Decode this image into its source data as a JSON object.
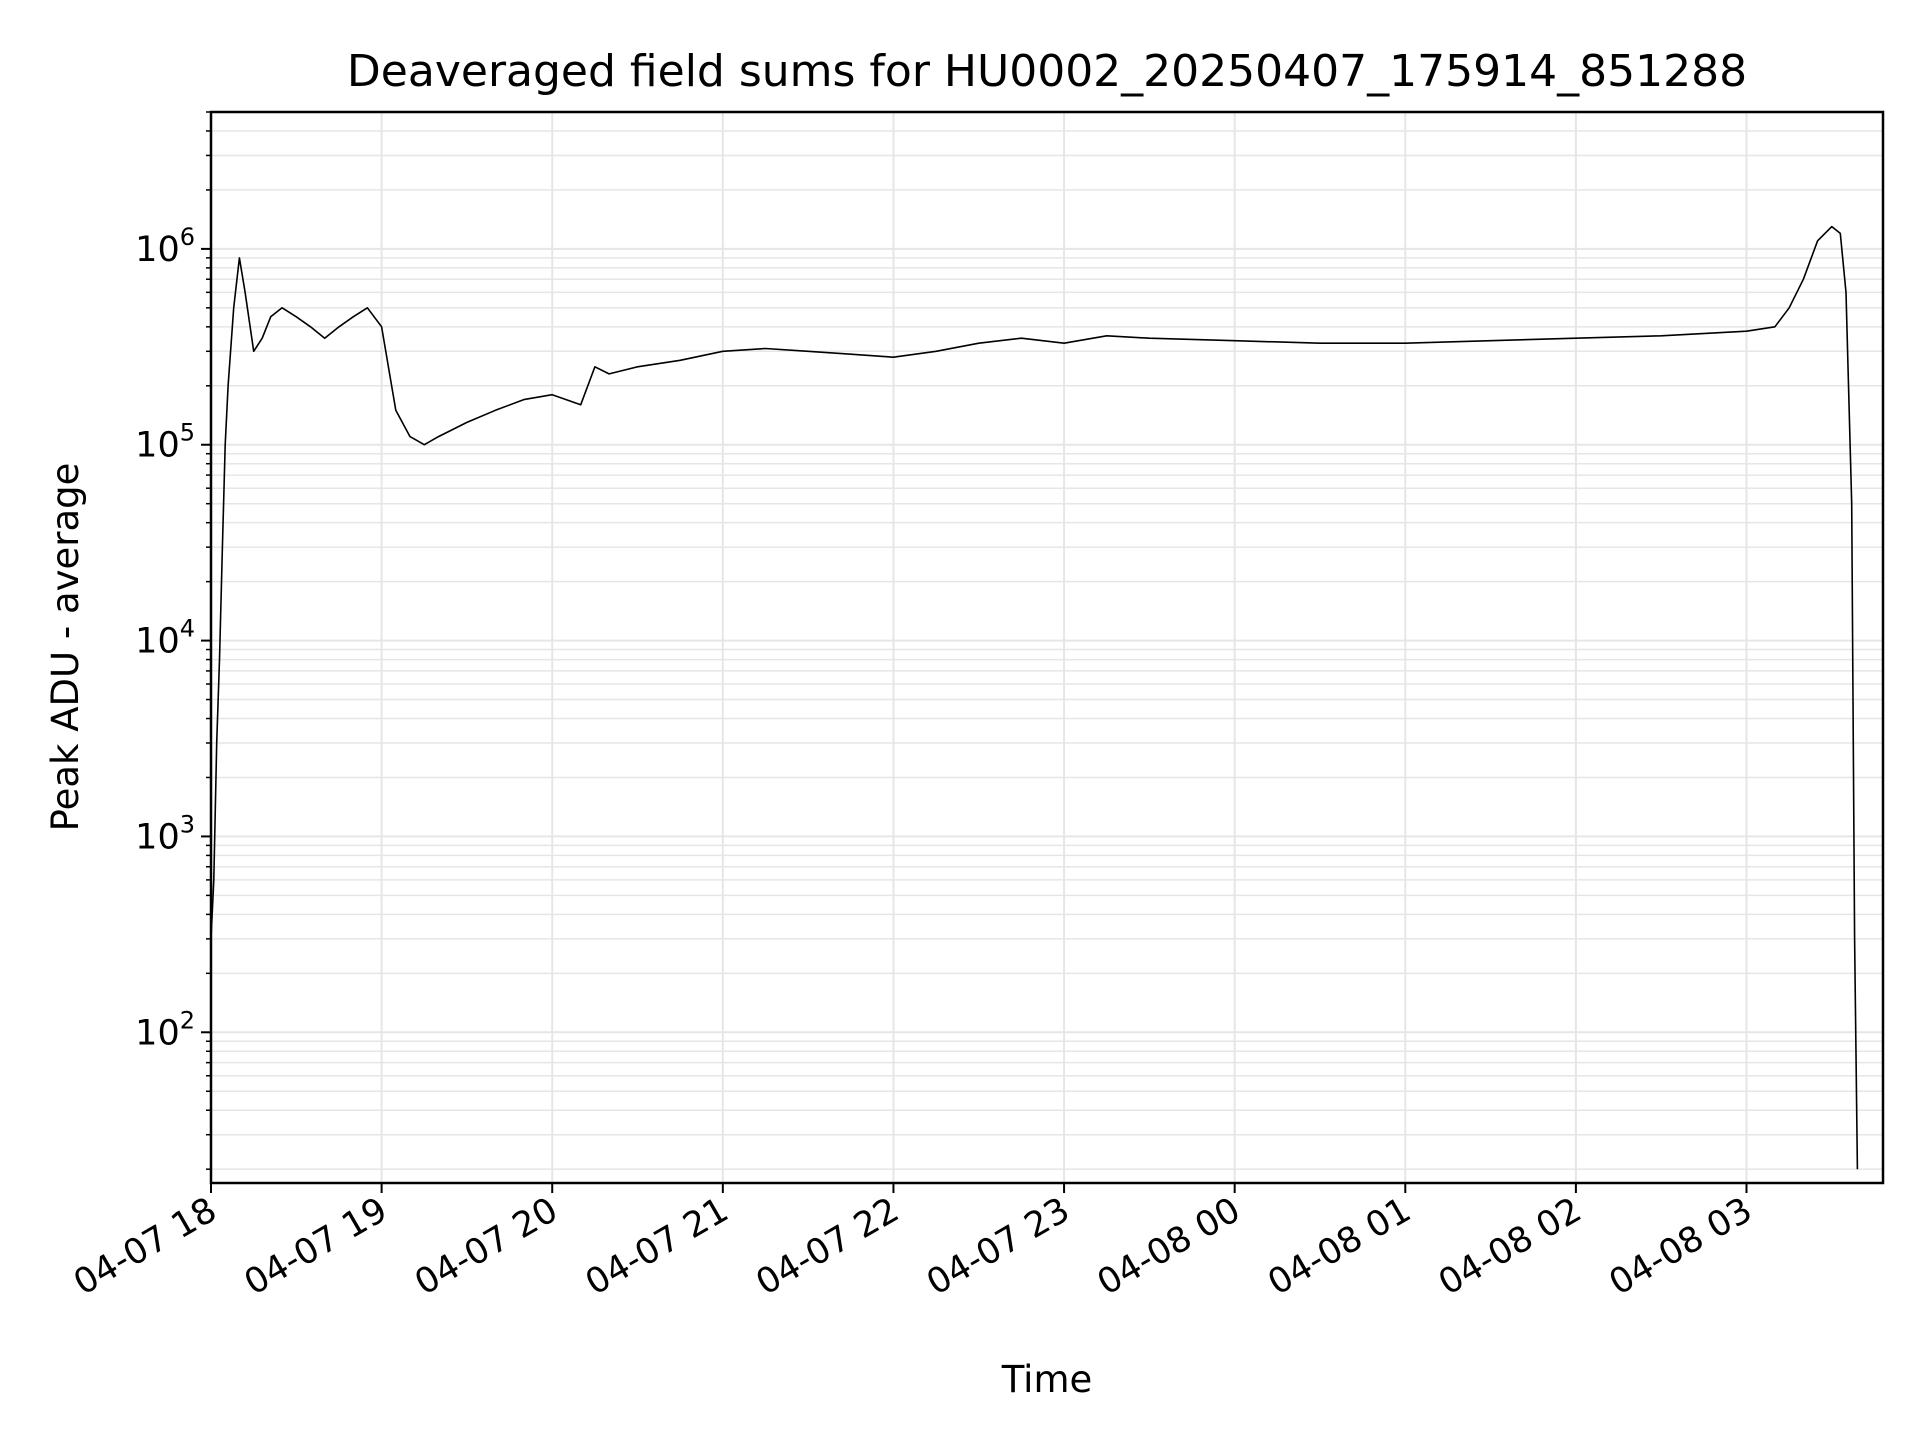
{
  "chart_data": {
    "type": "line",
    "title": "Deaveraged field sums for HU0002_20250407_175914_851288",
    "xlabel": "Time",
    "ylabel": "Peak ADU - average",
    "y_scale": "log",
    "ylim": [
      17,
      5000000
    ],
    "y_ticks": [
      {
        "value": 100,
        "base": "10",
        "exp": "2"
      },
      {
        "value": 1000,
        "base": "10",
        "exp": "3"
      },
      {
        "value": 10000,
        "base": "10",
        "exp": "4"
      },
      {
        "value": 100000,
        "base": "10",
        "exp": "5"
      },
      {
        "value": 1000000,
        "base": "10",
        "exp": "6"
      }
    ],
    "xlim": [
      "2025-04-07 18:00",
      "2025-04-08 03:48"
    ],
    "x_ticks": [
      {
        "value": "2025-04-07 18:00",
        "label": "04-07 18"
      },
      {
        "value": "2025-04-07 19:00",
        "label": "04-07 19"
      },
      {
        "value": "2025-04-07 20:00",
        "label": "04-07 20"
      },
      {
        "value": "2025-04-07 21:00",
        "label": "04-07 21"
      },
      {
        "value": "2025-04-07 22:00",
        "label": "04-07 22"
      },
      {
        "value": "2025-04-07 23:00",
        "label": "04-07 23"
      },
      {
        "value": "2025-04-08 00:00",
        "label": "04-08 00"
      },
      {
        "value": "2025-04-08 01:00",
        "label": "04-08 01"
      },
      {
        "value": "2025-04-08 02:00",
        "label": "04-08 02"
      },
      {
        "value": "2025-04-08 03:00",
        "label": "04-08 03"
      }
    ],
    "grid": true,
    "line_color": "#000000",
    "grid_color": "#e6e6e6",
    "series": [
      {
        "x": [
          "2025-04-07 18:00",
          "2025-04-07 18:01",
          "2025-04-07 18:02",
          "2025-04-07 18:03",
          "2025-04-07 18:04",
          "2025-04-07 18:05",
          "2025-04-07 18:06",
          "2025-04-07 18:08",
          "2025-04-07 18:10",
          "2025-04-07 18:12",
          "2025-04-07 18:15",
          "2025-04-07 18:18",
          "2025-04-07 18:21",
          "2025-04-07 18:25",
          "2025-04-07 18:30",
          "2025-04-07 18:35",
          "2025-04-07 18:40",
          "2025-04-07 18:45",
          "2025-04-07 18:50",
          "2025-04-07 18:55",
          "2025-04-07 19:00",
          "2025-04-07 19:05",
          "2025-04-07 19:10",
          "2025-04-07 19:15",
          "2025-04-07 19:20",
          "2025-04-07 19:30",
          "2025-04-07 19:40",
          "2025-04-07 19:50",
          "2025-04-07 20:00",
          "2025-04-07 20:10",
          "2025-04-07 20:15",
          "2025-04-07 20:20",
          "2025-04-07 20:30",
          "2025-04-07 20:45",
          "2025-04-07 21:00",
          "2025-04-07 21:15",
          "2025-04-07 21:30",
          "2025-04-07 21:45",
          "2025-04-07 22:00",
          "2025-04-07 22:15",
          "2025-04-07 22:30",
          "2025-04-07 22:45",
          "2025-04-07 23:00",
          "2025-04-07 23:15",
          "2025-04-07 23:30",
          "2025-04-08 00:00",
          "2025-04-08 00:30",
          "2025-04-08 01:00",
          "2025-04-08 01:30",
          "2025-04-08 02:00",
          "2025-04-08 02:30",
          "2025-04-08 03:00",
          "2025-04-08 03:10",
          "2025-04-08 03:15",
          "2025-04-08 03:20",
          "2025-04-08 03:25",
          "2025-04-08 03:30",
          "2025-04-08 03:33",
          "2025-04-08 03:35",
          "2025-04-08 03:37",
          "2025-04-08 03:38",
          "2025-04-08 03:39"
        ],
        "y": [
          300,
          600,
          3000,
          8000,
          30000,
          100000,
          200000,
          500000,
          900000,
          600000,
          300000,
          350000,
          450000,
          500000,
          450000,
          400000,
          350000,
          400000,
          450000,
          500000,
          400000,
          150000,
          110000,
          100000,
          110000,
          130000,
          150000,
          170000,
          180000,
          160000,
          250000,
          230000,
          250000,
          270000,
          300000,
          310000,
          300000,
          290000,
          280000,
          300000,
          330000,
          350000,
          330000,
          360000,
          350000,
          340000,
          330000,
          330000,
          340000,
          350000,
          360000,
          380000,
          400000,
          500000,
          700000,
          1100000,
          1300000,
          1200000,
          600000,
          50000,
          300,
          20
        ]
      }
    ]
  }
}
